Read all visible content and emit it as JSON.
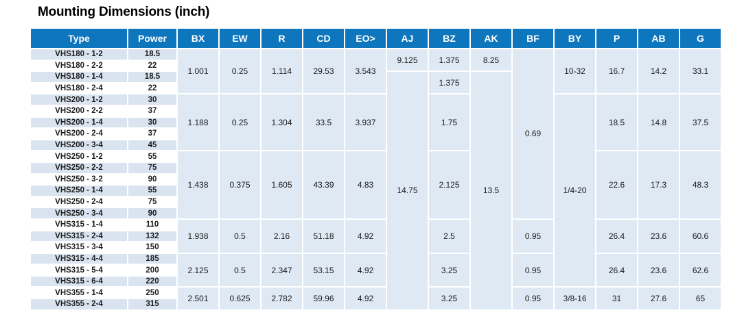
{
  "title": "Mounting Dimensions (inch)",
  "colors": {
    "header_bg": "#0e76bd",
    "header_text": "#ffffff",
    "row_stripe": "#d9e4f0",
    "data_cell_bg": "#dfe9f4",
    "text": "#1a1a1a"
  },
  "table": {
    "headers": [
      "Type",
      "Power",
      "BX",
      "EW",
      "R",
      "CD",
      "EO>",
      "AJ",
      "BZ",
      "AK",
      "BF",
      "BY",
      "P",
      "AB",
      "G"
    ],
    "rows": [
      {
        "type": "VHS180 - 1-2",
        "power": "18.5"
      },
      {
        "type": "VHS180 - 2-2",
        "power": "22"
      },
      {
        "type": "VHS180 - 1-4",
        "power": "18.5"
      },
      {
        "type": "VHS180 - 2-4",
        "power": "22"
      },
      {
        "type": "VHS200 - 1-2",
        "power": "30"
      },
      {
        "type": "VHS200 - 2-2",
        "power": "37"
      },
      {
        "type": "VHS200 - 1-4",
        "power": "30"
      },
      {
        "type": "VHS200 - 2-4",
        "power": "37"
      },
      {
        "type": "VHS200 - 3-4",
        "power": "45"
      },
      {
        "type": "VHS250 - 1-2",
        "power": "55"
      },
      {
        "type": "VHS250 - 2-2",
        "power": "75"
      },
      {
        "type": "VHS250 - 3-2",
        "power": "90"
      },
      {
        "type": "VHS250 - 1-4",
        "power": "55"
      },
      {
        "type": "VHS250 - 2-4",
        "power": "75"
      },
      {
        "type": "VHS250 - 3-4",
        "power": "90"
      },
      {
        "type": "VHS315 - 1-4",
        "power": "110"
      },
      {
        "type": "VHS315 - 2-4",
        "power": "132"
      },
      {
        "type": "VHS315 - 3-4",
        "power": "150"
      },
      {
        "type": "VHS315 - 4-4",
        "power": "185"
      },
      {
        "type": "VHS315 - 5-4",
        "power": "200"
      },
      {
        "type": "VHS315 - 6-4",
        "power": "220"
      },
      {
        "type": "VHS355 - 1-4",
        "power": "250"
      },
      {
        "type": "VHS355 - 2-4",
        "power": "315"
      }
    ],
    "columns": [
      {
        "key": "BX",
        "segments": [
          {
            "start": 1,
            "span": 4,
            "value": "1.001"
          },
          {
            "start": 5,
            "span": 5,
            "value": "1.188"
          },
          {
            "start": 10,
            "span": 6,
            "value": "1.438"
          },
          {
            "start": 16,
            "span": 3,
            "value": "1.938"
          },
          {
            "start": 19,
            "span": 3,
            "value": "2.125"
          },
          {
            "start": 22,
            "span": 2,
            "value": "2.501"
          }
        ]
      },
      {
        "key": "EW",
        "segments": [
          {
            "start": 1,
            "span": 4,
            "value": "0.25"
          },
          {
            "start": 5,
            "span": 5,
            "value": "0.25"
          },
          {
            "start": 10,
            "span": 6,
            "value": "0.375"
          },
          {
            "start": 16,
            "span": 3,
            "value": "0.5"
          },
          {
            "start": 19,
            "span": 3,
            "value": "0.5"
          },
          {
            "start": 22,
            "span": 2,
            "value": "0.625"
          }
        ]
      },
      {
        "key": "R",
        "segments": [
          {
            "start": 1,
            "span": 4,
            "value": "1.114"
          },
          {
            "start": 5,
            "span": 5,
            "value": "1.304"
          },
          {
            "start": 10,
            "span": 6,
            "value": "1.605"
          },
          {
            "start": 16,
            "span": 3,
            "value": "2.16"
          },
          {
            "start": 19,
            "span": 3,
            "value": "2.347"
          },
          {
            "start": 22,
            "span": 2,
            "value": "2.782"
          }
        ]
      },
      {
        "key": "CD",
        "segments": [
          {
            "start": 1,
            "span": 4,
            "value": "29.53"
          },
          {
            "start": 5,
            "span": 5,
            "value": "33.5"
          },
          {
            "start": 10,
            "span": 6,
            "value": "43.39"
          },
          {
            "start": 16,
            "span": 3,
            "value": "51.18"
          },
          {
            "start": 19,
            "span": 3,
            "value": "53.15"
          },
          {
            "start": 22,
            "span": 2,
            "value": "59.96"
          }
        ]
      },
      {
        "key": "EO>",
        "segments": [
          {
            "start": 1,
            "span": 4,
            "value": "3.543"
          },
          {
            "start": 5,
            "span": 5,
            "value": "3.937"
          },
          {
            "start": 10,
            "span": 6,
            "value": "4.83"
          },
          {
            "start": 16,
            "span": 3,
            "value": "4.92"
          },
          {
            "start": 19,
            "span": 3,
            "value": "4.92"
          },
          {
            "start": 22,
            "span": 2,
            "value": "4.92"
          }
        ]
      },
      {
        "key": "AJ",
        "segments": [
          {
            "start": 1,
            "span": 2,
            "value": "9.125"
          },
          {
            "start": 3,
            "span": 21,
            "value": "14.75"
          }
        ]
      },
      {
        "key": "BZ",
        "segments": [
          {
            "start": 1,
            "span": 2,
            "value": "1.375"
          },
          {
            "start": 3,
            "span": 2,
            "value": "1.375"
          },
          {
            "start": 5,
            "span": 5,
            "value": "1.75"
          },
          {
            "start": 10,
            "span": 6,
            "value": "2.125"
          },
          {
            "start": 16,
            "span": 3,
            "value": "2.5"
          },
          {
            "start": 19,
            "span": 3,
            "value": "3.25"
          },
          {
            "start": 22,
            "span": 2,
            "value": "3.25"
          }
        ]
      },
      {
        "key": "AK",
        "segments": [
          {
            "start": 1,
            "span": 2,
            "value": "8.25"
          },
          {
            "start": 3,
            "span": 21,
            "value": "13.5"
          }
        ]
      },
      {
        "key": "BF",
        "segments": [
          {
            "start": 1,
            "span": 15,
            "value": "0.69"
          },
          {
            "start": 16,
            "span": 3,
            "value": "0.95"
          },
          {
            "start": 19,
            "span": 3,
            "value": "0.95"
          },
          {
            "start": 22,
            "span": 2,
            "value": "0.95"
          }
        ]
      },
      {
        "key": "BY",
        "segments": [
          {
            "start": 1,
            "span": 4,
            "value": "10-32"
          },
          {
            "start": 5,
            "span": 17,
            "value": "1/4-20"
          },
          {
            "start": 22,
            "span": 2,
            "value": "3/8-16"
          }
        ]
      },
      {
        "key": "P",
        "segments": [
          {
            "start": 1,
            "span": 4,
            "value": "16.7"
          },
          {
            "start": 5,
            "span": 5,
            "value": "18.5"
          },
          {
            "start": 10,
            "span": 6,
            "value": "22.6"
          },
          {
            "start": 16,
            "span": 3,
            "value": "26.4"
          },
          {
            "start": 19,
            "span": 3,
            "value": "26.4"
          },
          {
            "start": 22,
            "span": 2,
            "value": "31"
          }
        ]
      },
      {
        "key": "AB",
        "segments": [
          {
            "start": 1,
            "span": 4,
            "value": "14.2"
          },
          {
            "start": 5,
            "span": 5,
            "value": "14.8"
          },
          {
            "start": 10,
            "span": 6,
            "value": "17.3"
          },
          {
            "start": 16,
            "span": 3,
            "value": "23.6"
          },
          {
            "start": 19,
            "span": 3,
            "value": "23.6"
          },
          {
            "start": 22,
            "span": 2,
            "value": "27.6"
          }
        ]
      },
      {
        "key": "G",
        "segments": [
          {
            "start": 1,
            "span": 4,
            "value": "33.1"
          },
          {
            "start": 5,
            "span": 5,
            "value": "37.5"
          },
          {
            "start": 10,
            "span": 6,
            "value": "48.3"
          },
          {
            "start": 16,
            "span": 3,
            "value": "60.6"
          },
          {
            "start": 19,
            "span": 3,
            "value": "62.6"
          },
          {
            "start": 22,
            "span": 2,
            "value": "65"
          }
        ]
      }
    ]
  }
}
